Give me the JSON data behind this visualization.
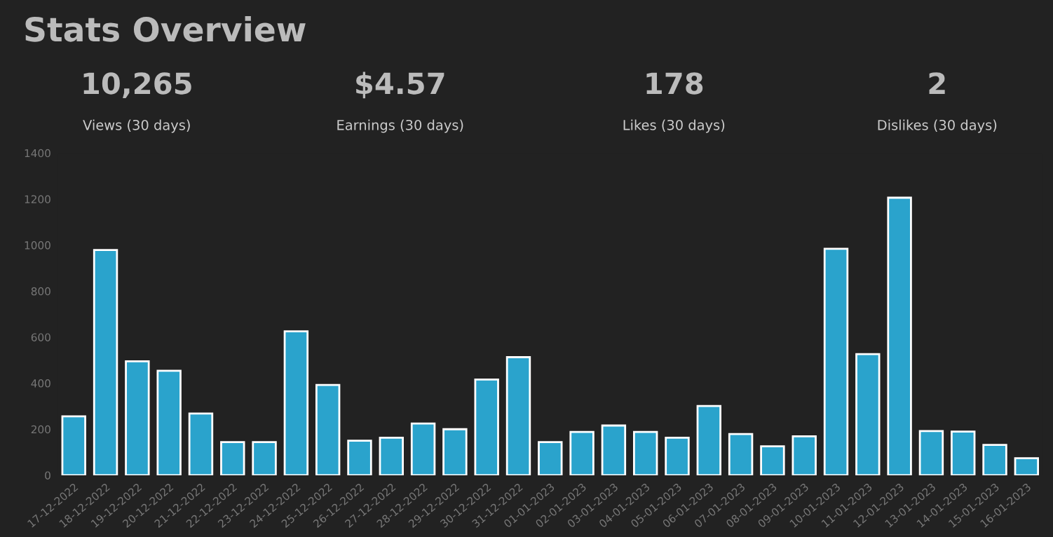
{
  "chart_data": {
    "type": "bar",
    "title": "Stats Overview",
    "annotations": [
      "10,265",
      "Views (30 days)",
      "$4.57",
      "Earnings (30 days)",
      "178",
      "Likes (30 days)",
      "2",
      "Dislikes (30 days)"
    ],
    "categories": [
      "17-12-2022",
      "18-12-2022",
      "19-12-2022",
      "20-12-2022",
      "21-12-2022",
      "22-12-2022",
      "23-12-2022",
      "24-12-2022",
      "25-12-2022",
      "26-12-2022",
      "27-12-2022",
      "28-12-2022",
      "29-12-2022",
      "30-12-2022",
      "31-12-2022",
      "01-01-2023",
      "02-01-2023",
      "03-01-2023",
      "04-01-2023",
      "05-01-2023",
      "06-01-2023",
      "07-01-2023",
      "08-01-2023",
      "09-01-2023",
      "10-01-2023",
      "11-01-2023",
      "12-01-2023",
      "13-01-2023",
      "14-01-2023",
      "15-01-2023",
      "16-01-2023"
    ],
    "values": [
      256,
      979,
      495,
      454,
      268,
      144,
      144,
      625,
      392,
      150,
      163,
      225,
      200,
      416,
      513,
      144,
      188,
      216,
      188,
      163,
      301,
      179,
      126,
      169,
      984,
      526,
      1206,
      192,
      190,
      132,
      74
    ],
    "color": "#2aa3cc",
    "ylim": [
      0,
      1400
    ],
    "yticks": [
      0,
      200,
      400,
      600,
      800,
      1000,
      1200,
      1400
    ],
    "grid": false,
    "legend": false
  }
}
